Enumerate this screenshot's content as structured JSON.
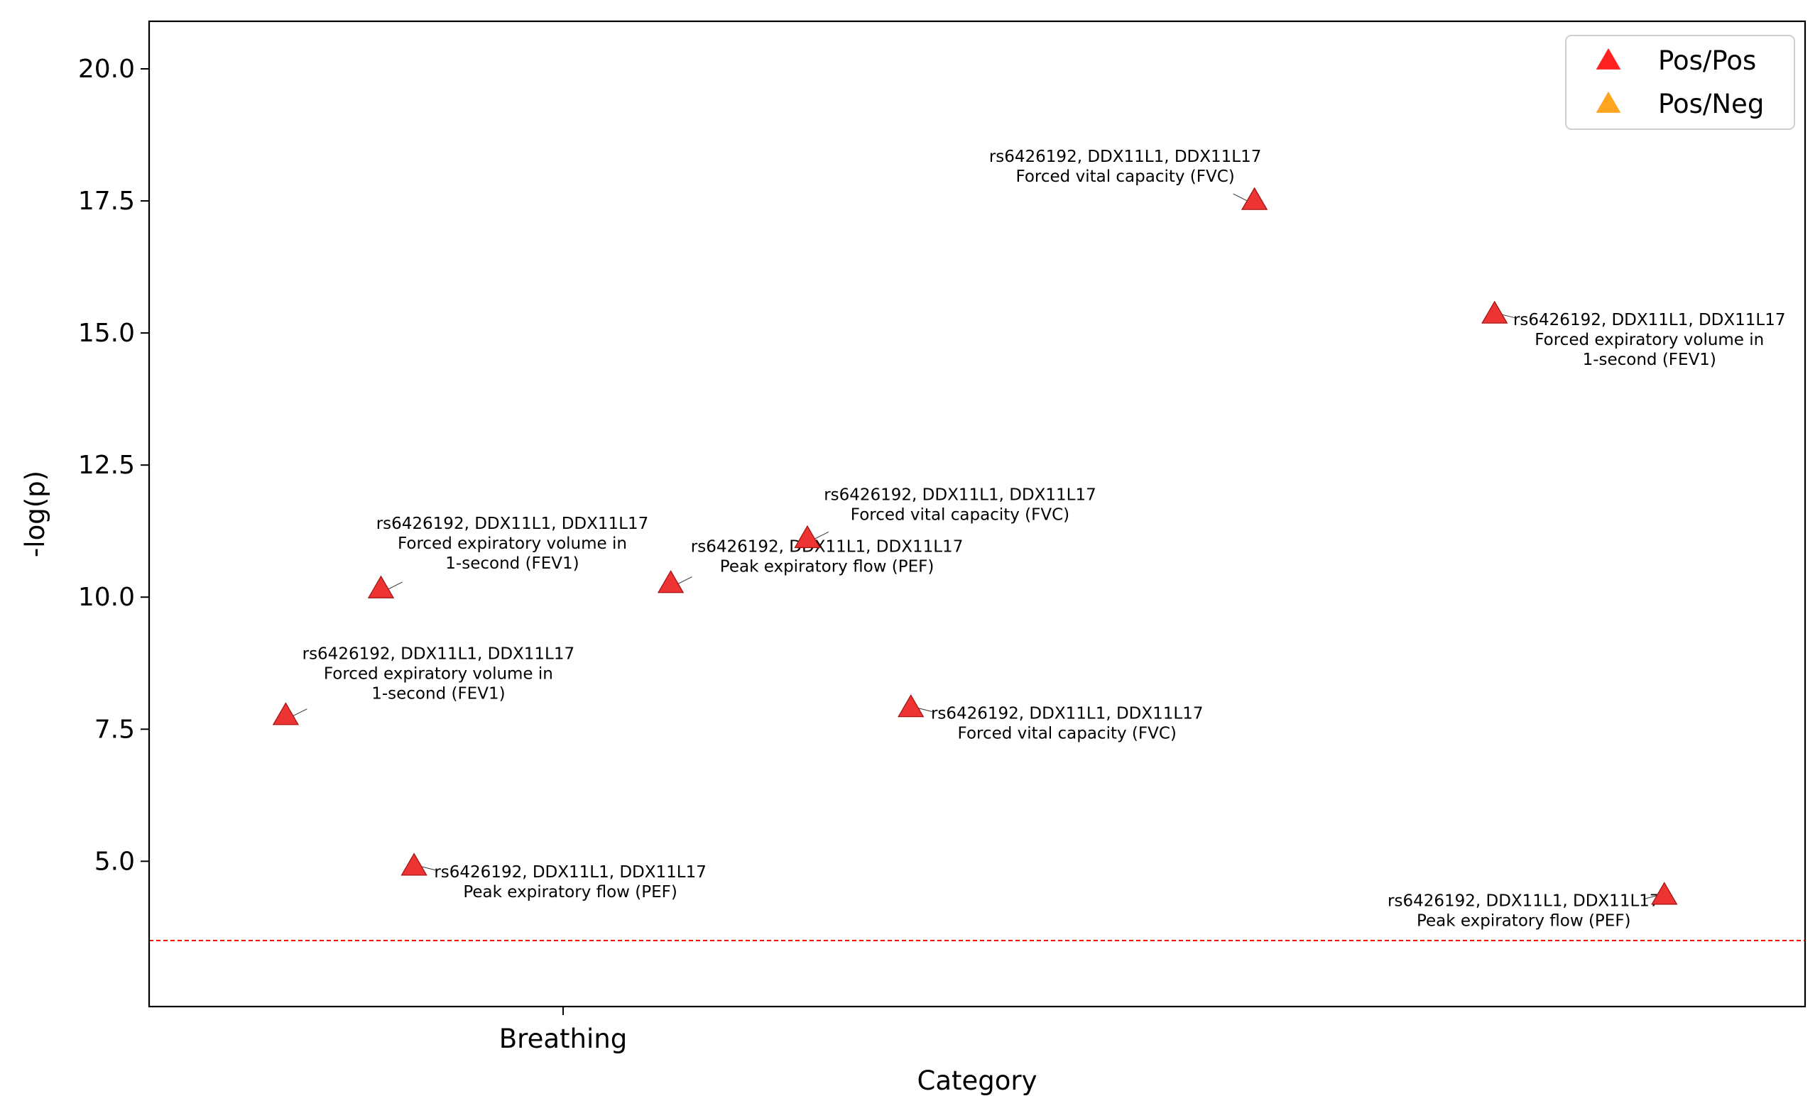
{
  "chart_data": {
    "type": "scatter",
    "title": "",
    "xlabel": "Category",
    "ylabel": "-log(p)",
    "xlim": [
      -1.0,
      3.0
    ],
    "ylim": [
      2.25,
      20.9
    ],
    "x_ticks": [
      {
        "value": 0,
        "label": "Breathing"
      }
    ],
    "y_ticks": [
      5.0,
      7.5,
      10.0,
      12.5,
      15.0,
      17.5,
      20.0
    ],
    "y_tick_labels": [
      "5.0",
      "7.5",
      "10.0",
      "12.5",
      "15.0",
      "17.5",
      "20.0"
    ],
    "grid": false,
    "threshold": {
      "y": 3.5,
      "color": "#ff0000",
      "style": "dashed"
    },
    "legend": {
      "placement": "top-right",
      "entries": [
        {
          "label": "Pos/Pos",
          "color": "#ff2020",
          "marker": "triangle"
        },
        {
          "label": "Pos/Neg",
          "color": "#ffa520",
          "marker": "triangle"
        }
      ]
    },
    "series": [
      {
        "name": "Pos/Pos",
        "color": "#ee3333",
        "points": [
          {
            "x": -0.67,
            "y": 7.75,
            "label": [
              "rs6426192, DDX11L1, DDX11L17",
              "Forced expiratory volume in",
              "1-second (FEV1)"
            ]
          },
          {
            "x": -0.44,
            "y": 10.15,
            "label": [
              "rs6426192, DDX11L1, DDX11L17",
              "Forced expiratory volume in",
              "1-second (FEV1)"
            ]
          },
          {
            "x": -0.36,
            "y": 4.9,
            "label": [
              "rs6426192, DDX11L1, DDX11L17",
              "Peak expiratory flow (PEF)"
            ]
          },
          {
            "x": 0.26,
            "y": 10.25,
            "label": [
              "rs6426192, DDX11L1, DDX11L17",
              "Peak expiratory flow (PEF)"
            ]
          },
          {
            "x": 0.59,
            "y": 11.1,
            "label": [
              "rs6426192, DDX11L1, DDX11L17",
              "Forced vital capacity (FVC)"
            ]
          },
          {
            "x": 0.84,
            "y": 7.9,
            "label": [
              "rs6426192, DDX11L1, DDX11L17",
              "Forced vital capacity (FVC)"
            ]
          },
          {
            "x": 1.67,
            "y": 17.5,
            "label": [
              "rs6426192, DDX11L1, DDX11L17",
              "Forced vital capacity (FVC)"
            ]
          },
          {
            "x": 2.25,
            "y": 15.35,
            "label": [
              "rs6426192, DDX11L1, DDX11L17",
              "Forced expiratory volume in",
              "1-second (FEV1)"
            ]
          },
          {
            "x": 2.66,
            "y": 4.35,
            "label": [
              "rs6426192, DDX11L1, DDX11L17",
              "Peak expiratory flow (PEF)"
            ]
          }
        ]
      }
    ]
  }
}
